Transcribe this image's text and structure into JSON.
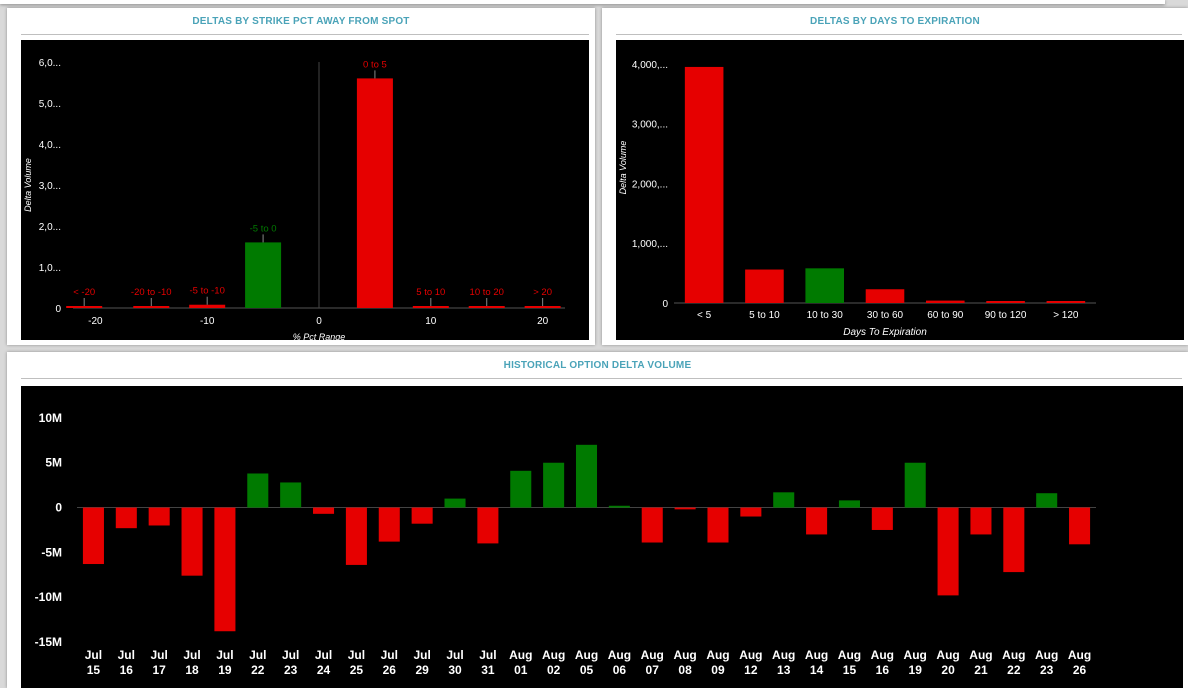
{
  "colors": {
    "positive": "#007a00",
    "negative": "#e60000",
    "plot_bg": "#000000",
    "title": "#4aa3b8",
    "text": "#ffffff"
  },
  "panels": {
    "strike": {
      "title": "DELTAS BY STRIKE PCT AWAY FROM SPOT"
    },
    "expiry": {
      "title": "DELTAS BY DAYS TO EXPIRATION"
    },
    "history": {
      "title": "HISTORICAL OPTION DELTA VOLUME"
    }
  },
  "chart_data": [
    {
      "id": "strike",
      "type": "bar",
      "title": "DELTAS BY STRIKE PCT AWAY FROM SPOT",
      "xlabel": "% Pct Range",
      "ylabel": "Delta Volume",
      "x_ticks": [
        "-20",
        "-10",
        "0",
        "10",
        "20"
      ],
      "x_tick_values": [
        -20,
        -10,
        0,
        10,
        20
      ],
      "y_ticks": [
        "0",
        "1,0...",
        "2,0...",
        "3,0...",
        "4,0...",
        "5,0...",
        "6,0..."
      ],
      "y_tick_values": [
        0,
        1000,
        2000,
        3000,
        4000,
        5000,
        6000
      ],
      "xlim": [
        -22,
        22
      ],
      "ylim": [
        0,
        6000
      ],
      "grid": false,
      "bars": [
        {
          "label": "< -20",
          "x": -21,
          "value": 30,
          "sign": "negative"
        },
        {
          "label": "-20 to -10",
          "x": -15,
          "value": 40,
          "sign": "negative"
        },
        {
          "label": "-5 to -10",
          "x": -10,
          "value": 80,
          "sign": "negative"
        },
        {
          "label": "-5 to 0",
          "x": -5,
          "value": 1600,
          "sign": "positive"
        },
        {
          "label": "0 to 5",
          "x": 5,
          "value": 5600,
          "sign": "negative"
        },
        {
          "label": "5 to 10",
          "x": 10,
          "value": 20,
          "sign": "negative"
        },
        {
          "label": "10 to 20",
          "x": 15,
          "value": 15,
          "sign": "negative"
        },
        {
          "label": "> 20",
          "x": 20,
          "value": 10,
          "sign": "negative"
        }
      ]
    },
    {
      "id": "expiry",
      "type": "bar",
      "title": "DELTAS BY DAYS TO EXPIRATION",
      "xlabel": "Days To Expiration",
      "ylabel": "Delta Volume",
      "categories": [
        "< 5",
        "5 to 10",
        "10 to 30",
        "30 to 60",
        "60 to 90",
        "90 to 120",
        "> 120"
      ],
      "values": [
        3950,
        560,
        580,
        230,
        40,
        30,
        10
      ],
      "signs": [
        "negative",
        "negative",
        "positive",
        "negative",
        "negative",
        "negative",
        "negative"
      ],
      "y_ticks": [
        "0",
        "1,000,...",
        "2,000,...",
        "3,000,...",
        "4,000,..."
      ],
      "y_tick_values": [
        0,
        1000,
        2000,
        3000,
        4000
      ],
      "ylim": [
        0,
        4200
      ],
      "grid": false
    },
    {
      "id": "history",
      "type": "bar",
      "title": "HISTORICAL OPTION DELTA VOLUME",
      "xlabel": "",
      "ylabel": "",
      "categories": [
        [
          "Jul",
          "15"
        ],
        [
          "Jul",
          "16"
        ],
        [
          "Jul",
          "17"
        ],
        [
          "Jul",
          "18"
        ],
        [
          "Jul",
          "19"
        ],
        [
          "Jul",
          "22"
        ],
        [
          "Jul",
          "23"
        ],
        [
          "Jul",
          "24"
        ],
        [
          "Jul",
          "25"
        ],
        [
          "Jul",
          "26"
        ],
        [
          "Jul",
          "29"
        ],
        [
          "Jul",
          "30"
        ],
        [
          "Jul",
          "31"
        ],
        [
          "Aug",
          "01"
        ],
        [
          "Aug",
          "02"
        ],
        [
          "Aug",
          "05"
        ],
        [
          "Aug",
          "06"
        ],
        [
          "Aug",
          "07"
        ],
        [
          "Aug",
          "08"
        ],
        [
          "Aug",
          "09"
        ],
        [
          "Aug",
          "12"
        ],
        [
          "Aug",
          "13"
        ],
        [
          "Aug",
          "14"
        ],
        [
          "Aug",
          "15"
        ],
        [
          "Aug",
          "16"
        ],
        [
          "Aug",
          "19"
        ],
        [
          "Aug",
          "20"
        ],
        [
          "Aug",
          "21"
        ],
        [
          "Aug",
          "22"
        ],
        [
          "Aug",
          "23"
        ],
        [
          "Aug",
          "26"
        ]
      ],
      "values": [
        -6.3,
        -2.3,
        -2.0,
        -7.6,
        -13.8,
        3.8,
        2.8,
        -0.7,
        -6.4,
        -3.8,
        -1.8,
        1.0,
        -4.0,
        4.1,
        5.0,
        7.0,
        0.2,
        -3.9,
        -0.2,
        -3.9,
        -1.0,
        1.7,
        -3.0,
        0.8,
        -2.5,
        5.0,
        -9.8,
        -3.0,
        -7.2,
        1.6,
        -4.1
      ],
      "y_ticks": [
        "10M",
        "5M",
        "0",
        "-5M",
        "-10M",
        "-15M"
      ],
      "y_tick_values": [
        10,
        5,
        0,
        -5,
        -10,
        -15
      ],
      "unit": "M",
      "ylim": [
        -15,
        12
      ],
      "grid": false
    }
  ]
}
